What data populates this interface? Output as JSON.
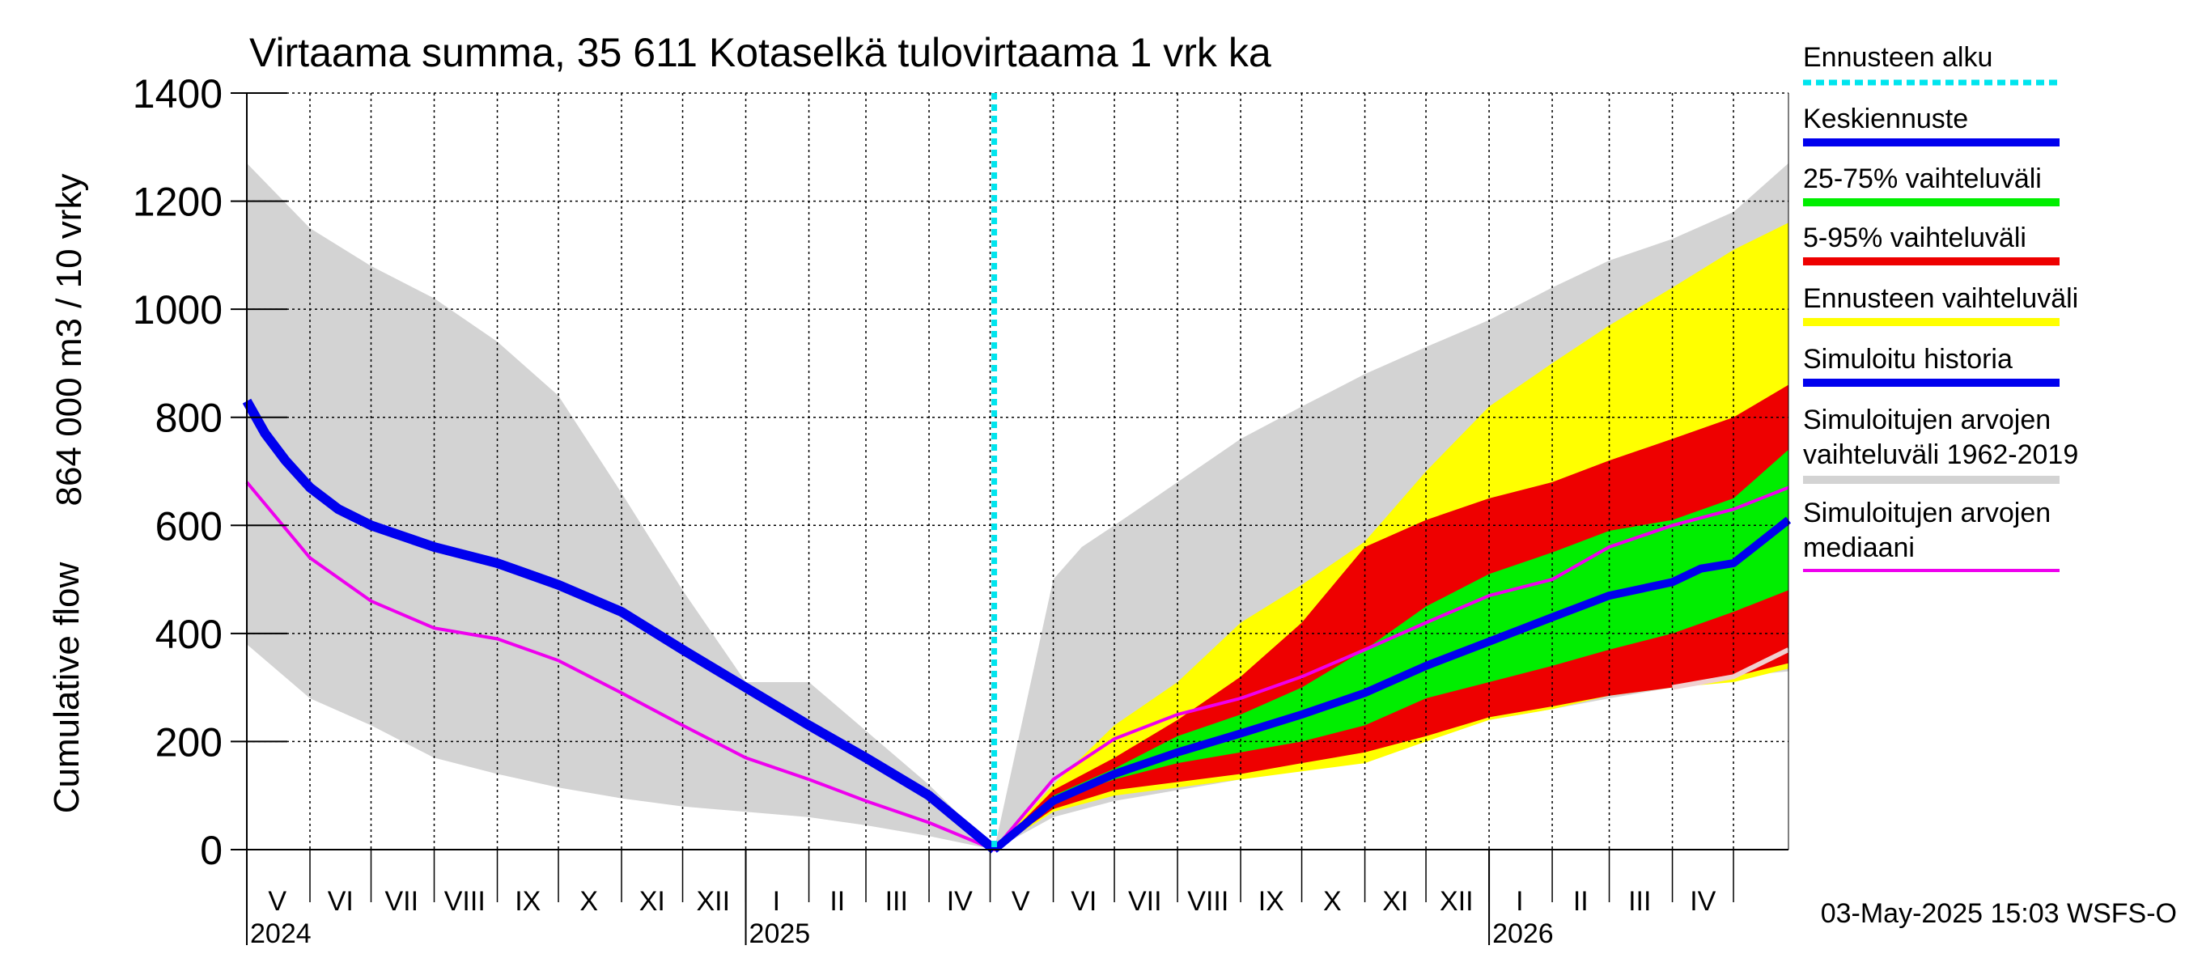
{
  "chart_data": {
    "type": "area",
    "title": "Virtaama summa, 35 611 Kotaselkä tulovirtaama 1 vrk ka",
    "ylabel_line1": "Cumulative flow",
    "ylabel_line2": "864 000 m3 / 10 vrky",
    "ylim": [
      0,
      1400
    ],
    "yticks": [
      "0",
      "200",
      "400",
      "600",
      "800",
      "1000",
      "1200",
      "1400"
    ],
    "xlim": [
      "2024-05-01",
      "2026-05-28"
    ],
    "forecast_start": "2025-05-03",
    "month_labels": [
      {
        "label": "V",
        "date": "2024-05-16"
      },
      {
        "label": "VI",
        "date": "2024-06-16"
      },
      {
        "label": "VII",
        "date": "2024-07-16"
      },
      {
        "label": "VIII",
        "date": "2024-08-16"
      },
      {
        "label": "IX",
        "date": "2024-09-16"
      },
      {
        "label": "X",
        "date": "2024-10-16"
      },
      {
        "label": "XI",
        "date": "2024-11-16"
      },
      {
        "label": "XII",
        "date": "2024-12-16"
      },
      {
        "label": "I",
        "date": "2025-01-16"
      },
      {
        "label": "II",
        "date": "2025-02-15"
      },
      {
        "label": "III",
        "date": "2025-03-16"
      },
      {
        "label": "IV",
        "date": "2025-04-16"
      },
      {
        "label": "V",
        "date": "2025-05-16"
      },
      {
        "label": "VI",
        "date": "2025-06-16"
      },
      {
        "label": "VII",
        "date": "2025-07-16"
      },
      {
        "label": "VIII",
        "date": "2025-08-16"
      },
      {
        "label": "IX",
        "date": "2025-09-16"
      },
      {
        "label": "X",
        "date": "2025-10-16"
      },
      {
        "label": "XI",
        "date": "2025-11-16"
      },
      {
        "label": "XII",
        "date": "2025-12-16"
      },
      {
        "label": "I",
        "date": "2026-01-16"
      },
      {
        "label": "II",
        "date": "2026-02-15"
      },
      {
        "label": "III",
        "date": "2026-03-16"
      },
      {
        "label": "IV",
        "date": "2026-04-16"
      }
    ],
    "year_labels": [
      {
        "label": "2024",
        "date": "2024-05-01"
      },
      {
        "label": "2025",
        "date": "2025-01-01"
      },
      {
        "label": "2026",
        "date": "2026-01-01"
      }
    ],
    "legend": [
      {
        "label": "Ennusteen alku",
        "color": "#00e5ee",
        "style": "dotted"
      },
      {
        "label": "Keskiennuste",
        "color": "#0000ee",
        "style": "solid"
      },
      {
        "label": "25-75% vaihteluväli",
        "color": "#00ee00",
        "style": "solid"
      },
      {
        "label": "5-95% vaihteluväli",
        "color": "#ee0000",
        "style": "solid"
      },
      {
        "label": "Ennusteen vaihteluväli",
        "color": "#ffff00",
        "style": "solid"
      },
      {
        "label": "Simuloitu historia",
        "color": "#0000ee",
        "style": "solid"
      },
      {
        "label": "Simuloitujen arvojen vaihteluväli 1962-2019",
        "line1": "Simuloitujen arvojen",
        "line2": "vaihteluväli 1962-2019",
        "color": "#d3d3d3",
        "style": "solid"
      },
      {
        "label": "Simuloitujen arvojen mediaani",
        "line1": "Simuloitujen arvojen",
        "line2": "mediaani",
        "color": "#ee00ee",
        "style": "solid"
      }
    ],
    "footer": "03-May-2025 15:03 WSFS-O",
    "colors": {
      "history_range": "#d3d3d3",
      "forecast_range": "#ffff00",
      "p5_95": "#ee0000",
      "p25_75": "#00ee00",
      "mean_forecast": "#0000ee",
      "simulated_history": "#0000ee",
      "median": "#ee00ee",
      "forecast_start": "#00e5ee"
    },
    "series": {
      "hist_range_upper": {
        "x": [
          "2024-05-01",
          "2024-06-01",
          "2024-07-01",
          "2024-08-01",
          "2024-09-01",
          "2024-10-01",
          "2024-11-01",
          "2024-12-01",
          "2025-01-01",
          "2025-02-01",
          "2025-03-01",
          "2025-04-01",
          "2025-05-03",
          "2025-06-01",
          "2025-06-15",
          "2025-07-01",
          "2025-08-01",
          "2025-09-01",
          "2025-10-01",
          "2025-11-01",
          "2025-12-01",
          "2026-01-01",
          "2026-02-01",
          "2026-03-01",
          "2026-04-01",
          "2026-05-01",
          "2026-05-28"
        ],
        "y": [
          1270,
          1150,
          1080,
          1020,
          940,
          840,
          660,
          480,
          310,
          310,
          220,
          120,
          0,
          500,
          560,
          600,
          680,
          760,
          820,
          880,
          930,
          980,
          1040,
          1090,
          1130,
          1180,
          1270
        ]
      },
      "hist_range_lower": {
        "x": [
          "2024-05-01",
          "2024-06-01",
          "2024-07-01",
          "2024-08-01",
          "2024-09-01",
          "2024-10-01",
          "2024-11-01",
          "2024-12-01",
          "2025-01-01",
          "2025-02-01",
          "2025-03-01",
          "2025-04-01",
          "2025-05-03",
          "2025-06-01",
          "2025-07-01",
          "2025-08-01",
          "2025-09-01",
          "2025-10-01",
          "2025-11-01",
          "2025-12-01",
          "2026-01-01",
          "2026-02-01",
          "2026-03-01",
          "2026-04-01",
          "2026-05-01",
          "2026-05-28"
        ],
        "y": [
          380,
          280,
          230,
          170,
          140,
          115,
          95,
          80,
          70,
          60,
          45,
          25,
          0,
          60,
          90,
          110,
          130,
          150,
          175,
          205,
          240,
          260,
          280,
          300,
          320,
          330
        ]
      },
      "forecast_range_upper": {
        "x": [
          "2025-05-03",
          "2025-06-01",
          "2025-07-01",
          "2025-08-01",
          "2025-09-01",
          "2025-10-01",
          "2025-11-01",
          "2025-12-01",
          "2026-01-01",
          "2026-02-01",
          "2026-03-01",
          "2026-04-01",
          "2026-05-01",
          "2026-05-28"
        ],
        "y": [
          0,
          120,
          230,
          310,
          420,
          490,
          570,
          700,
          820,
          900,
          970,
          1040,
          1110,
          1160
        ]
      },
      "forecast_range_lower": {
        "x": [
          "2025-05-03",
          "2025-06-01",
          "2025-07-01",
          "2025-08-01",
          "2025-09-01",
          "2025-10-01",
          "2025-11-01",
          "2025-12-01",
          "2026-01-01",
          "2026-02-01",
          "2026-03-01",
          "2026-04-01",
          "2026-05-01",
          "2026-05-28"
        ],
        "y": [
          0,
          70,
          100,
          115,
          130,
          145,
          160,
          200,
          240,
          260,
          285,
          300,
          310,
          335
        ]
      },
      "p95": {
        "x": [
          "2025-05-03",
          "2025-06-01",
          "2025-07-01",
          "2025-08-01",
          "2025-09-01",
          "2025-10-01",
          "2025-11-01",
          "2025-12-01",
          "2026-01-01",
          "2026-02-01",
          "2026-03-01",
          "2026-04-01",
          "2026-05-01",
          "2026-05-28"
        ],
        "y": [
          0,
          110,
          170,
          240,
          320,
          420,
          560,
          610,
          650,
          680,
          720,
          760,
          800,
          860
        ]
      },
      "p5": {
        "x": [
          "2025-05-03",
          "2025-06-01",
          "2025-07-01",
          "2025-08-01",
          "2025-09-01",
          "2025-10-01",
          "2025-11-01",
          "2025-12-01",
          "2026-01-01",
          "2026-02-01",
          "2026-03-01",
          "2026-04-01",
          "2026-05-01",
          "2026-05-28"
        ],
        "y": [
          0,
          75,
          110,
          125,
          140,
          160,
          180,
          210,
          245,
          265,
          285,
          300,
          320,
          345
        ]
      },
      "p75": {
        "x": [
          "2025-05-03",
          "2025-06-01",
          "2025-07-01",
          "2025-08-01",
          "2025-09-01",
          "2025-10-01",
          "2025-11-01",
          "2025-12-01",
          "2026-01-01",
          "2026-02-01",
          "2026-03-01",
          "2026-04-01",
          "2026-05-01",
          "2026-05-28"
        ],
        "y": [
          0,
          100,
          150,
          210,
          250,
          300,
          370,
          450,
          510,
          550,
          590,
          610,
          650,
          740
        ]
      },
      "p25": {
        "x": [
          "2025-05-03",
          "2025-06-01",
          "2025-07-01",
          "2025-08-01",
          "2025-09-01",
          "2025-10-01",
          "2025-11-01",
          "2025-12-01",
          "2026-01-01",
          "2026-02-01",
          "2026-03-01",
          "2026-04-01",
          "2026-05-01",
          "2026-05-28"
        ],
        "y": [
          0,
          90,
          130,
          160,
          180,
          200,
          230,
          280,
          310,
          340,
          370,
          400,
          440,
          480
        ]
      },
      "mean_forecast": {
        "x": [
          "2025-05-03",
          "2025-06-01",
          "2025-07-01",
          "2025-08-01",
          "2025-09-01",
          "2025-10-01",
          "2025-11-01",
          "2025-12-01",
          "2026-01-01",
          "2026-02-01",
          "2026-03-01",
          "2026-04-01",
          "2026-04-15",
          "2026-05-01",
          "2026-05-28"
        ],
        "y": [
          0,
          90,
          140,
          180,
          215,
          250,
          290,
          340,
          385,
          430,
          470,
          495,
          520,
          530,
          610
        ]
      },
      "simulated_history": {
        "x": [
          "2024-05-01",
          "2024-05-10",
          "2024-05-20",
          "2024-06-01",
          "2024-06-15",
          "2024-07-01",
          "2024-08-01",
          "2024-09-01",
          "2024-10-01",
          "2024-11-01",
          "2024-12-01",
          "2025-01-01",
          "2025-02-01",
          "2025-03-01",
          "2025-04-01",
          "2025-05-03"
        ],
        "y": [
          830,
          770,
          720,
          670,
          630,
          600,
          560,
          530,
          490,
          440,
          370,
          300,
          230,
          170,
          100,
          0
        ]
      },
      "median": {
        "x": [
          "2024-05-01",
          "2024-06-01",
          "2024-07-01",
          "2024-08-01",
          "2024-09-01",
          "2024-10-01",
          "2024-11-01",
          "2024-12-01",
          "2025-01-01",
          "2025-02-01",
          "2025-03-01",
          "2025-04-01",
          "2025-05-03",
          "2025-06-01",
          "2025-07-01",
          "2025-08-01",
          "2025-09-01",
          "2025-10-01",
          "2025-11-01",
          "2025-12-01",
          "2026-01-01",
          "2026-02-01",
          "2026-03-01",
          "2026-04-01",
          "2026-05-01",
          "2026-05-28"
        ],
        "y": [
          680,
          540,
          460,
          410,
          390,
          350,
          290,
          230,
          170,
          130,
          90,
          50,
          0,
          130,
          205,
          250,
          280,
          320,
          370,
          420,
          470,
          500,
          560,
          600,
          630,
          670
        ]
      },
      "lower_line": {
        "x": [
          "2026-04-01",
          "2026-05-01",
          "2026-05-28"
        ],
        "y": [
          300,
          320,
          370
        ]
      }
    }
  }
}
